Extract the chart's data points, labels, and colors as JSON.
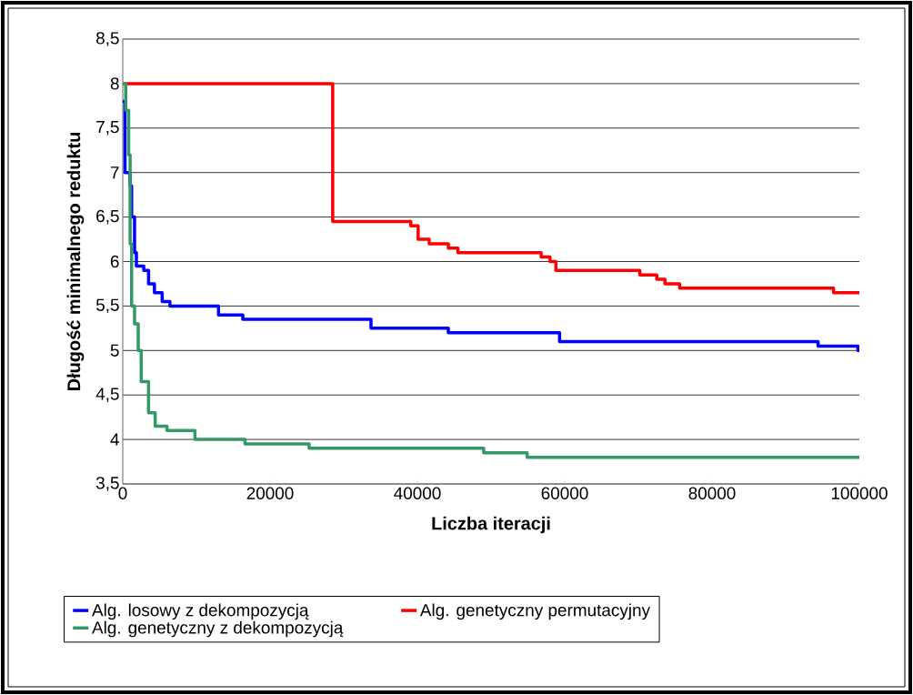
{
  "chart_data": {
    "type": "step",
    "xlabel": "Liczba iteracji",
    "ylabel": "Długość minimalnego reduktu",
    "xlim": [
      0,
      100000
    ],
    "xticks": [
      0,
      20000,
      40000,
      60000,
      80000,
      100000
    ],
    "ylim": [
      3.5,
      8.5
    ],
    "yticks": [
      {
        "value": 3.5,
        "label": "3,5"
      },
      4,
      {
        "value": 4.5,
        "label": "4,5"
      },
      5,
      {
        "value": 5.5,
        "label": "5,5"
      },
      6,
      {
        "value": 6.5,
        "label": "6,5"
      },
      7,
      {
        "value": 7.5,
        "label": "7,5"
      },
      8,
      {
        "value": 8.5,
        "label": "8,5"
      }
    ],
    "grid": "y",
    "legend": "bottom",
    "marker": "none",
    "line_style": "solid",
    "series": [
      {
        "name": "Alg. losowy z dekompozycją",
        "color": "#0000ff",
        "x": [
          0,
          300,
          1000,
          1200,
          1600,
          1850,
          2850,
          3500,
          4300,
          5350,
          6400,
          13000,
          16300,
          33700,
          44200,
          59300,
          94400,
          99800,
          100000
        ],
        "values": [
          7.8,
          7.0,
          6.85,
          6.5,
          6.1,
          5.95,
          5.9,
          5.75,
          5.65,
          5.55,
          5.5,
          5.4,
          5.35,
          5.25,
          5.2,
          5.1,
          5.05,
          5.0,
          5.0
        ]
      },
      {
        "name": "Alg. genetyczny permutacyjny",
        "color": "#ff0000",
        "x": [
          0,
          28500,
          39100,
          40100,
          41600,
          44200,
          45500,
          56800,
          58000,
          58800,
          70200,
          72500,
          73600,
          75600,
          96500,
          100000
        ],
        "values": [
          8,
          6.45,
          6.4,
          6.25,
          6.2,
          6.15,
          6.1,
          6.05,
          6.0,
          5.9,
          5.85,
          5.8,
          5.75,
          5.7,
          5.65,
          5.65
        ]
      },
      {
        "name": "Alg. genetyczny z dekompozycją",
        "color": "#339966",
        "x": [
          0,
          400,
          800,
          1000,
          1200,
          1600,
          2100,
          2500,
          3500,
          4400,
          6000,
          9800,
          16600,
          25300,
          49000,
          54900,
          100000
        ],
        "values": [
          8,
          7.7,
          7.2,
          6.2,
          5.5,
          5.3,
          5.0,
          4.65,
          4.3,
          4.15,
          4.1,
          4.0,
          3.95,
          3.9,
          3.85,
          3.8,
          3.8
        ]
      }
    ]
  }
}
